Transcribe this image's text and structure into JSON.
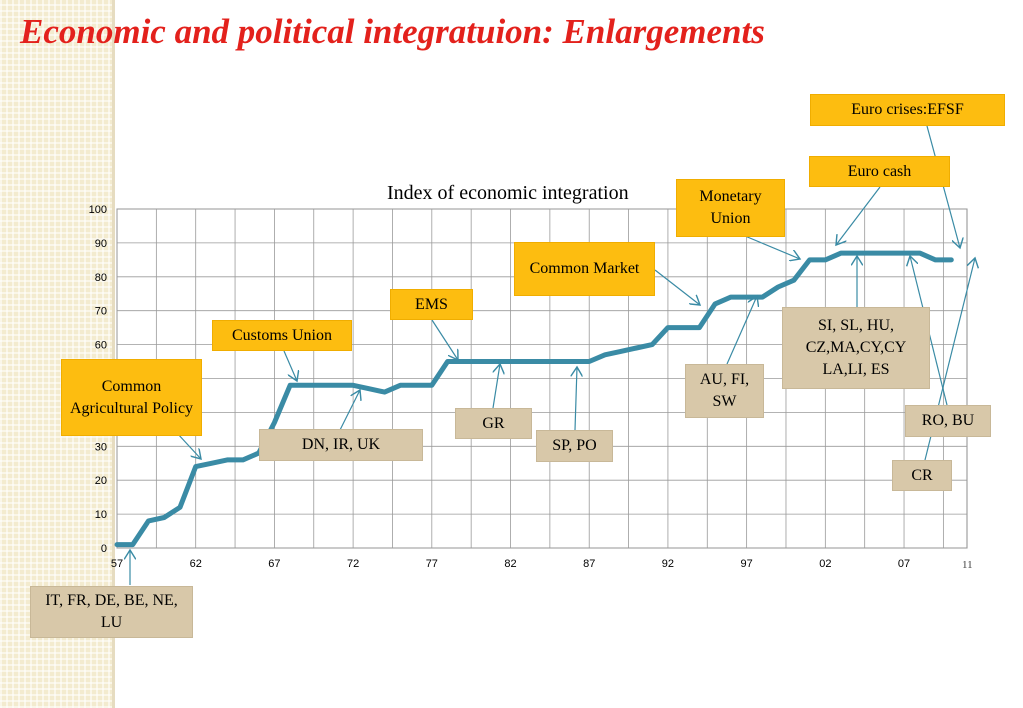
{
  "title": "Economic and political integratuion: Enlargements",
  "page_number": "11",
  "chart_data": {
    "type": "line",
    "title": "Index of economic integration",
    "xlabel": "",
    "ylabel": "",
    "ylim": [
      0,
      100
    ],
    "y_ticks": [
      0,
      10,
      20,
      30,
      40,
      50,
      60,
      70,
      80,
      90,
      100
    ],
    "x_range": [
      1957,
      2011
    ],
    "x_ticks": [
      "57",
      "62",
      "67",
      "72",
      "77",
      "82",
      "87",
      "92",
      "97",
      "02",
      "07"
    ],
    "x_tick_years": [
      1957,
      1962,
      1967,
      1972,
      1977,
      1982,
      1987,
      1992,
      1997,
      2002,
      2007
    ],
    "grid": true,
    "line_color": "#3a8ba5",
    "series": [
      {
        "x": [
          1957,
          1958,
          1959,
          1960,
          1961,
          1962,
          1963,
          1964,
          1965,
          1966,
          1967,
          1968,
          1969,
          1970,
          1971,
          1972,
          1973,
          1974,
          1975,
          1976,
          1977,
          1978,
          1979,
          1980,
          1981,
          1982,
          1983,
          1984,
          1985,
          1986,
          1987,
          1988,
          1989,
          1990,
          1991,
          1992,
          1993,
          1994,
          1995,
          1996,
          1997,
          1998,
          1999,
          2000,
          2001,
          2002,
          2003,
          2004,
          2005,
          2006,
          2007,
          2008,
          2009,
          2010
        ],
        "y": [
          1,
          1,
          8,
          9,
          12,
          24,
          25,
          26,
          26,
          28,
          37,
          48,
          48,
          48,
          48,
          48,
          47,
          46,
          48,
          48,
          48,
          55,
          55,
          55,
          55,
          55,
          55,
          55,
          55,
          55,
          55,
          57,
          58,
          59,
          60,
          65,
          65,
          65,
          72,
          74,
          74,
          74,
          77,
          79,
          85,
          85,
          87,
          87,
          87,
          87,
          87,
          87,
          85,
          85
        ]
      }
    ]
  },
  "callouts": [
    {
      "id": "founders",
      "text": "IT, FR, DE, BE, NE, LU",
      "style": "tan"
    },
    {
      "id": "cap",
      "text": "Common Agricultural Policy",
      "style": "orange"
    },
    {
      "id": "customs",
      "text": "Customs Union",
      "style": "orange"
    },
    {
      "id": "dn-ir-uk",
      "text": "DN, IR, UK",
      "style": "tan"
    },
    {
      "id": "ems",
      "text": "EMS",
      "style": "orange"
    },
    {
      "id": "gr",
      "text": "GR",
      "style": "tan"
    },
    {
      "id": "sp-po",
      "text": "SP, PO",
      "style": "tan"
    },
    {
      "id": "common-market",
      "text": "Common Market",
      "style": "orange"
    },
    {
      "id": "au-fi-sw",
      "text": "AU, FI, SW",
      "style": "tan"
    },
    {
      "id": "monetary",
      "text": "Monetary Union",
      "style": "orange"
    },
    {
      "id": "euro-cash",
      "text": "Euro cash",
      "style": "orange"
    },
    {
      "id": "euro-crises",
      "text": "Euro crises:EFSF",
      "style": "orange"
    },
    {
      "id": "si-group",
      "text": "SI, SL, HU, CZ,MA,CY,CY LA,LI, ES",
      "style": "tan"
    },
    {
      "id": "ro-bu",
      "text": "RO, BU",
      "style": "tan"
    },
    {
      "id": "cr",
      "text": "CR",
      "style": "tan"
    }
  ]
}
